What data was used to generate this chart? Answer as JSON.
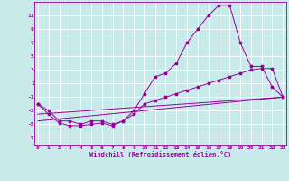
{
  "xlabel": "Windchill (Refroidissement éolien,°C)",
  "background_color": "#c8eaea",
  "grid_color": "#ffffff",
  "line_color": "#990099",
  "x_ticks": [
    0,
    1,
    2,
    3,
    4,
    5,
    6,
    7,
    8,
    9,
    10,
    11,
    12,
    13,
    14,
    15,
    16,
    17,
    18,
    19,
    20,
    21,
    22,
    23
  ],
  "y_ticks": [
    -7,
    -5,
    -3,
    -1,
    1,
    3,
    5,
    7,
    9,
    11
  ],
  "ylim": [
    -8.0,
    13.0
  ],
  "xlim": [
    -0.3,
    23.3
  ],
  "curve1_x": [
    0,
    1,
    2,
    3,
    4,
    5,
    6,
    7,
    8,
    9,
    10,
    11,
    12,
    13,
    14,
    15,
    16,
    17,
    18,
    19,
    20,
    21,
    22,
    23
  ],
  "curve1_y": [
    -2.0,
    -3.0,
    -4.5,
    -4.5,
    -5.0,
    -4.5,
    -4.5,
    -5.0,
    -4.5,
    -3.0,
    -0.5,
    2.0,
    2.5,
    4.0,
    7.0,
    9.0,
    11.0,
    12.5,
    12.5,
    7.0,
    3.5,
    3.5,
    0.5,
    -1.0
  ],
  "curve2_x": [
    0,
    1,
    2,
    3,
    4,
    5,
    6,
    7,
    8,
    9,
    10,
    11,
    12,
    13,
    14,
    15,
    16,
    17,
    18,
    19,
    20,
    21,
    22,
    23
  ],
  "curve2_y": [
    -2.0,
    -3.5,
    -4.8,
    -5.2,
    -5.2,
    -5.0,
    -4.8,
    -5.2,
    -4.5,
    -3.5,
    -2.0,
    -1.5,
    -1.0,
    -0.5,
    0.0,
    0.5,
    1.0,
    1.5,
    2.0,
    2.5,
    3.0,
    3.2,
    3.2,
    -1.0
  ],
  "curve3_x": [
    0,
    23
  ],
  "curve3_y": [
    -4.5,
    -1.0
  ],
  "curve4_x": [
    0,
    23
  ],
  "curve4_y": [
    -3.5,
    -1.0
  ],
  "tick_fontsize": 4.5,
  "xlabel_fontsize": 5.0,
  "marker_size": 2.5,
  "line_width": 0.7
}
